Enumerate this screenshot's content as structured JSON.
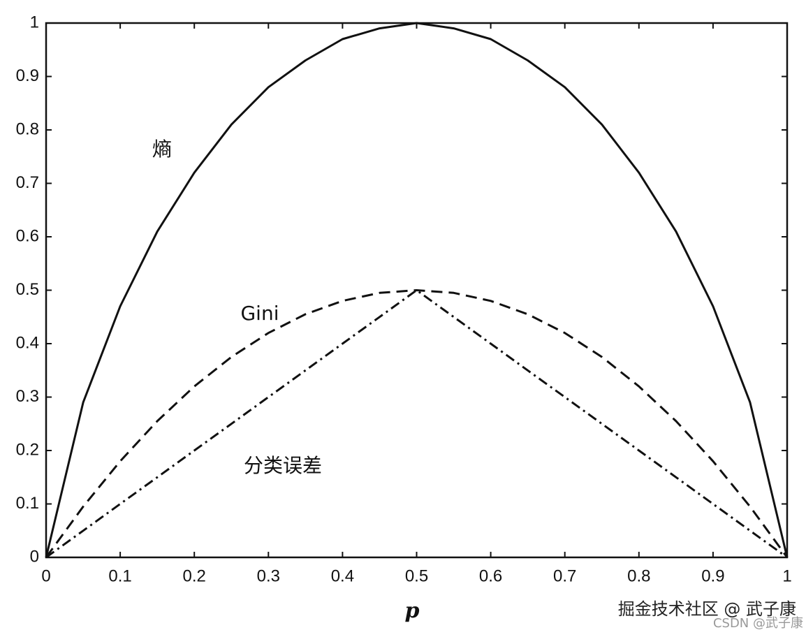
{
  "chart_data": {
    "type": "line",
    "x_label": "p",
    "x": [
      0,
      0.05,
      0.1,
      0.15,
      0.2,
      0.25,
      0.3,
      0.35,
      0.4,
      0.45,
      0.5,
      0.55,
      0.6,
      0.65,
      0.7,
      0.75,
      0.8,
      0.85,
      0.9,
      0.95,
      1
    ],
    "series": [
      {
        "name": "熵",
        "color": "#111111",
        "style": "solid",
        "values": [
          0,
          0.29,
          0.47,
          0.61,
          0.72,
          0.81,
          0.88,
          0.93,
          0.97,
          0.99,
          1,
          0.99,
          0.97,
          0.93,
          0.88,
          0.81,
          0.72,
          0.61,
          0.47,
          0.29,
          0
        ]
      },
      {
        "name": "Gini",
        "color": "#111111",
        "style": "dashed",
        "values": [
          0,
          0.095,
          0.18,
          0.255,
          0.32,
          0.375,
          0.42,
          0.455,
          0.48,
          0.495,
          0.5,
          0.495,
          0.48,
          0.455,
          0.42,
          0.375,
          0.32,
          0.255,
          0.18,
          0.095,
          0
        ]
      },
      {
        "name": "分类误差",
        "color": "#111111",
        "style": "dashdot",
        "values": [
          0,
          0.05,
          0.1,
          0.15,
          0.2,
          0.25,
          0.3,
          0.35,
          0.4,
          0.45,
          0.5,
          0.45,
          0.4,
          0.35,
          0.3,
          0.25,
          0.2,
          0.15,
          0.1,
          0.05,
          0
        ]
      }
    ],
    "xlim": [
      0,
      1
    ],
    "xticks": [
      0,
      0.1,
      0.2,
      0.3,
      0.4,
      0.5,
      0.6,
      0.7,
      0.8,
      0.9,
      1
    ],
    "ylim": [
      0,
      1
    ],
    "yticks": [
      0,
      0.1,
      0.2,
      0.3,
      0.4,
      0.5,
      0.6,
      0.7,
      0.8,
      0.9,
      1
    ],
    "grid": false
  },
  "watermarks": [
    "掘金技术社区 @ 武子康",
    "CSDN @武子康"
  ]
}
